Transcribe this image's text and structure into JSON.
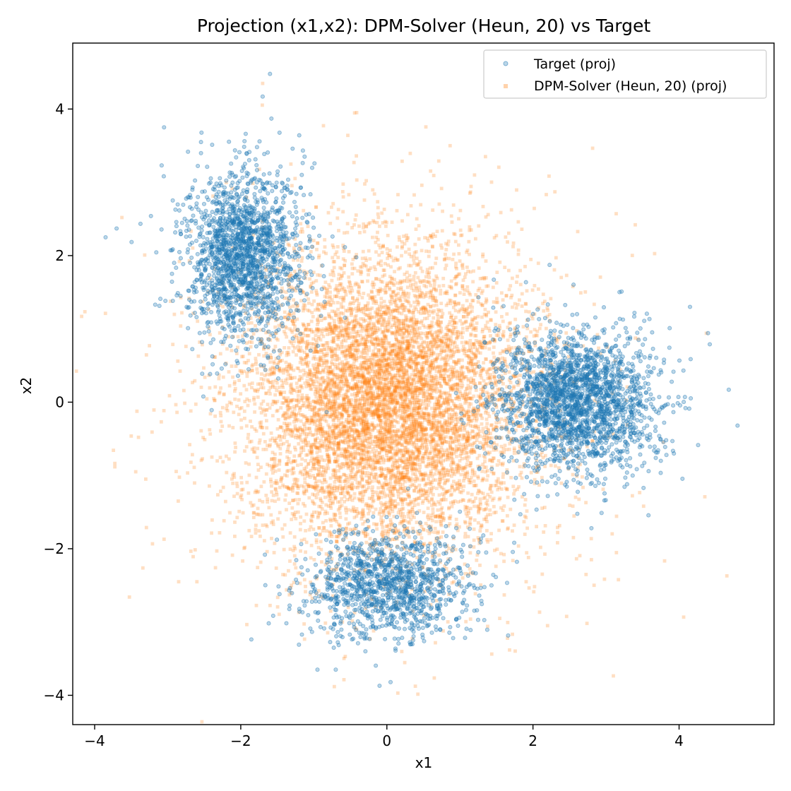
{
  "chart_data": {
    "type": "scatter",
    "title": "Projection (x1,x2): DPM-Solver (Heun, 20) vs Target",
    "xlabel": "x1",
    "ylabel": "x2",
    "xlim": [
      -4.3,
      5.3
    ],
    "ylim": [
      -4.4,
      4.9
    ],
    "xticks": [
      -4,
      -2,
      0,
      2,
      4
    ],
    "xtick_labels": [
      "−4",
      "−2",
      "0",
      "2",
      "4"
    ],
    "yticks": [
      -4,
      -2,
      0,
      2,
      4
    ],
    "ytick_labels": [
      "−4",
      "−2",
      "0",
      "2",
      "4"
    ],
    "grid": false,
    "legend_position": "top-right",
    "legend": [
      "Target (proj)",
      "DPM-Solver (Heun, 20) (proj)"
    ],
    "series": [
      {
        "name": "Target (proj)",
        "marker": "circle",
        "color": "#1f77b4",
        "alpha": 0.3,
        "distribution": "mixture of four 2D Gaussian clusters",
        "clusters": [
          {
            "center": [
              -2.0,
              2.0
            ],
            "std": [
              0.38,
              0.55
            ],
            "n": 1500
          },
          {
            "center": [
              2.6,
              0.0
            ],
            "std": [
              0.55,
              0.48
            ],
            "n": 2200
          },
          {
            "center": [
              0.0,
              -2.5
            ],
            "std": [
              0.55,
              0.35
            ],
            "n": 1200
          },
          {
            "center": [
              -2.0,
              2.0
            ],
            "std": [
              0.55,
              0.75
            ],
            "n": 250
          }
        ],
        "points": [
          [
            -3.85,
            2.25
          ],
          [
            -3.7,
            2.37
          ],
          [
            -1.6,
            4.48
          ],
          [
            -1.7,
            4.17
          ],
          [
            -1.58,
            3.87
          ],
          [
            -3.05,
            3.75
          ],
          [
            4.8,
            -0.32
          ],
          [
            4.68,
            0.17
          ],
          [
            4.42,
            0.79
          ],
          [
            4.15,
            1.3
          ],
          [
            -0.1,
            -3.87
          ],
          [
            0.05,
            -3.82
          ],
          [
            -0.95,
            -3.65
          ],
          [
            -0.7,
            -3.65
          ],
          [
            2.8,
            -1.72
          ]
        ]
      },
      {
        "name": "DPM-Solver (Heun, 20) (proj)",
        "marker": "x",
        "color": "#ff7f0e",
        "alpha": 0.25,
        "distribution": "broad 2D Gaussian centered near origin",
        "clusters": [
          {
            "center": [
              0.0,
              0.0
            ],
            "std": [
              0.9,
              0.95
            ],
            "n": 6500
          },
          {
            "center": [
              0.0,
              0.0
            ],
            "std": [
              1.4,
              1.35
            ],
            "n": 1800
          }
        ],
        "points": [
          [
            -1.7,
            4.35
          ],
          [
            -3.4,
            -0.48
          ],
          [
            -3.3,
            -1.05
          ],
          [
            -3.25,
            0.77
          ],
          [
            2.3,
            2.87
          ],
          [
            2.8,
            -2.15
          ],
          [
            0.15,
            -3.97
          ],
          [
            -2.85,
            -2.45
          ],
          [
            -2.6,
            -2.45
          ],
          [
            -3.05,
            -1.87
          ],
          [
            2.2,
            -3.05
          ],
          [
            3.4,
            2.42
          ],
          [
            1.2,
            3.1
          ],
          [
            -0.45,
            3.27
          ]
        ]
      }
    ]
  }
}
